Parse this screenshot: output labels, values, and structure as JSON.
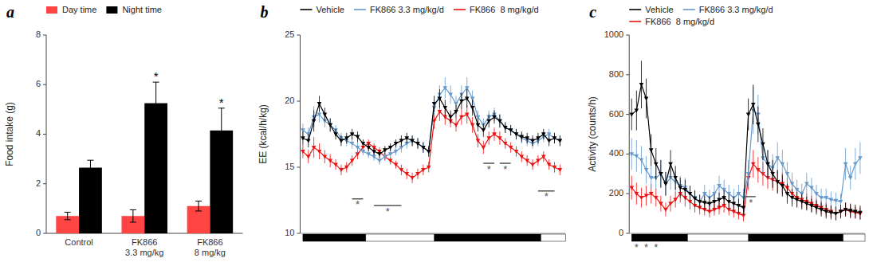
{
  "chart_data": [
    {
      "type": "bar",
      "title": "a",
      "categories": [
        "Control",
        "FK866\n3.3 mg/kg",
        "FK866\n8 mg/kg"
      ],
      "series": [
        {
          "name": "Day time",
          "color": "#FF4444",
          "values": [
            0.7,
            0.7,
            1.1
          ],
          "errors": [
            0.15,
            0.25,
            0.2
          ]
        },
        {
          "name": "Night time",
          "color": "#000000",
          "values": [
            2.65,
            5.25,
            4.15
          ],
          "errors": [
            0.3,
            0.85,
            0.9
          ],
          "significance": [
            null,
            "*",
            "*"
          ]
        }
      ],
      "ylabel": "Food intake (g)",
      "ylim": [
        0,
        8
      ],
      "yticks": [
        0,
        2,
        4,
        6,
        8
      ],
      "grid": false,
      "legend": "upper left"
    },
    {
      "type": "line",
      "title": "b",
      "x": [
        0,
        1,
        2,
        3,
        4,
        5,
        6,
        7,
        8,
        9,
        10,
        11,
        12,
        13,
        14,
        15,
        16,
        17,
        18,
        19,
        20,
        21,
        22,
        23,
        24,
        25,
        26,
        27,
        28,
        29,
        30,
        31,
        32,
        33,
        34,
        35,
        36,
        37,
        38,
        39,
        40,
        41,
        42,
        43,
        44,
        45,
        46,
        47
      ],
      "series": [
        {
          "name": "Vehicle",
          "color": "#000000",
          "marker": "triangle-down",
          "values": [
            17.2,
            17.0,
            18.5,
            19.8,
            19.0,
            18.2,
            17.5,
            17.0,
            17.2,
            17.5,
            17.3,
            16.8,
            16.5,
            16.2,
            16.0,
            16.3,
            16.5,
            16.8,
            17.0,
            17.2,
            17.0,
            16.8,
            16.5,
            16.2,
            19.8,
            20.2,
            19.5,
            18.8,
            19.2,
            20.0,
            20.2,
            19.5,
            18.2,
            17.8,
            18.5,
            18.8,
            18.5,
            18.0,
            17.8,
            17.5,
            17.3,
            17.2,
            17.0,
            17.2,
            17.5,
            17.0,
            17.2,
            17.0
          ],
          "errors": [
            0.5,
            0.5,
            0.8,
            0.6,
            0.5,
            0.5,
            0.4,
            0.4,
            0.4,
            0.4,
            0.4,
            0.3,
            0.3,
            0.3,
            0.3,
            0.3,
            0.3,
            0.3,
            0.4,
            0.4,
            0.4,
            0.4,
            0.4,
            0.4,
            0.6,
            0.7,
            0.6,
            0.5,
            0.5,
            0.6,
            0.7,
            0.6,
            0.5,
            0.5,
            0.5,
            0.5,
            0.5,
            0.4,
            0.4,
            0.4,
            0.4,
            0.4,
            0.4,
            0.4,
            0.4,
            0.4,
            0.4,
            0.4
          ]
        },
        {
          "name": "FK866 3.3 mg/kg/d",
          "color": "#6699CC",
          "marker": "triangle-down",
          "values": [
            17.8,
            17.5,
            18.8,
            19.0,
            18.5,
            18.2,
            17.8,
            17.2,
            17.0,
            16.8,
            16.5,
            16.2,
            16.0,
            15.8,
            15.5,
            15.8,
            16.0,
            16.2,
            16.5,
            16.8,
            17.0,
            16.8,
            16.5,
            16.2,
            19.5,
            20.5,
            21.0,
            20.5,
            19.8,
            20.5,
            21.0,
            20.2,
            18.8,
            18.2,
            18.8,
            19.0,
            18.5,
            18.0,
            17.8,
            17.5,
            17.2,
            17.0,
            16.8,
            17.0,
            17.3,
            17.5,
            17.2,
            17.0
          ],
          "errors": [
            0.5,
            0.5,
            0.8,
            0.6,
            0.5,
            0.5,
            0.4,
            0.4,
            0.4,
            0.4,
            0.4,
            0.3,
            0.3,
            0.3,
            0.3,
            0.3,
            0.3,
            0.3,
            0.4,
            0.4,
            0.4,
            0.4,
            0.4,
            0.4,
            0.6,
            0.7,
            0.8,
            0.7,
            0.6,
            0.7,
            0.8,
            0.6,
            0.5,
            0.5,
            0.5,
            0.5,
            0.5,
            0.4,
            0.4,
            0.4,
            0.4,
            0.4,
            0.4,
            0.4,
            0.4,
            0.4,
            0.4,
            0.4
          ]
        },
        {
          "name": "FK866  8 mg/kg/d",
          "color": "#EE1111",
          "marker": "triangle-down",
          "values": [
            16.2,
            15.8,
            16.5,
            16.2,
            15.8,
            15.5,
            15.2,
            14.8,
            15.0,
            15.5,
            16.0,
            16.5,
            16.8,
            16.5,
            16.2,
            15.8,
            15.5,
            15.2,
            14.8,
            14.5,
            14.2,
            14.5,
            14.8,
            15.0,
            18.5,
            19.2,
            18.8,
            18.5,
            18.2,
            18.8,
            19.0,
            18.2,
            17.0,
            16.5,
            17.2,
            17.5,
            17.2,
            16.8,
            16.5,
            16.2,
            15.8,
            15.5,
            15.2,
            15.5,
            15.8,
            15.2,
            15.0,
            14.8
          ],
          "errors": [
            0.5,
            0.5,
            0.8,
            0.6,
            0.5,
            0.5,
            0.4,
            0.4,
            0.4,
            0.4,
            0.4,
            0.3,
            0.3,
            0.3,
            0.3,
            0.3,
            0.3,
            0.3,
            0.4,
            0.4,
            0.4,
            0.4,
            0.4,
            0.4,
            0.6,
            0.7,
            0.6,
            0.5,
            0.5,
            0.6,
            0.7,
            0.6,
            0.5,
            0.5,
            0.5,
            0.5,
            0.5,
            0.4,
            0.4,
            0.4,
            0.4,
            0.4,
            0.4,
            0.4,
            0.4,
            0.4,
            0.4,
            0.4
          ]
        }
      ],
      "ylabel": "EE (kcal/h/kg)",
      "xlim": [
        -0.5,
        48
      ],
      "xticks": [],
      "ylim": [
        10,
        25
      ],
      "yticks": [
        10,
        15,
        20,
        25
      ],
      "tick_labels": "y",
      "grid": false,
      "legend": "upper left",
      "night_ranges": [
        [
          0,
          11.5
        ],
        [
          24,
          43.5
        ]
      ],
      "day_ranges": [
        [
          11.5,
          24
        ],
        [
          43.5,
          48
        ]
      ],
      "annotations": [
        {
          "text": "*",
          "x1": 9,
          "x2": 11,
          "y": 12.6
        },
        {
          "text": "*",
          "x1": 13,
          "x2": 18,
          "y": 12.1
        },
        {
          "text": "*",
          "x1": 33,
          "x2": 35,
          "y": 15.3
        },
        {
          "text": "*",
          "x1": 36,
          "x2": 38,
          "y": 15.3
        },
        {
          "text": "*",
          "x1": 43,
          "x2": 46,
          "y": 13.2
        }
      ]
    },
    {
      "type": "line",
      "title": "c",
      "x": [
        0,
        1,
        2,
        3,
        4,
        5,
        6,
        7,
        8,
        9,
        10,
        11,
        12,
        13,
        14,
        15,
        16,
        17,
        18,
        19,
        20,
        21,
        22,
        23,
        24,
        25,
        26,
        27,
        28,
        29,
        30,
        31,
        32,
        33,
        34,
        35,
        36,
        37,
        38,
        39,
        40,
        41,
        42,
        43,
        44,
        45,
        46,
        47
      ],
      "series": [
        {
          "name": "Vehicle",
          "color": "#000000",
          "marker": "triangle-down",
          "values": [
            600,
            620,
            750,
            680,
            420,
            350,
            300,
            250,
            350,
            280,
            230,
            220,
            200,
            175,
            160,
            155,
            150,
            160,
            170,
            180,
            160,
            150,
            140,
            130,
            600,
            650,
            550,
            450,
            350,
            300,
            260,
            240,
            200,
            180,
            170,
            160,
            150,
            140,
            130,
            120,
            110,
            105,
            100,
            110,
            120,
            115,
            110,
            105
          ],
          "errors": [
            80,
            100,
            120,
            100,
            80,
            80,
            70,
            60,
            70,
            60,
            50,
            50,
            40,
            40,
            35,
            35,
            35,
            35,
            35,
            35,
            35,
            35,
            35,
            35,
            80,
            100,
            90,
            80,
            70,
            70,
            60,
            55,
            50,
            45,
            40,
            40,
            35,
            35,
            35,
            35,
            35,
            35,
            35,
            35,
            35,
            35,
            35,
            35
          ]
        },
        {
          "name": "FK866 3.3 mg/kg/d",
          "color": "#6699CC",
          "marker": "triangle-down",
          "values": [
            400,
            390,
            370,
            320,
            280,
            280,
            300,
            250,
            280,
            260,
            240,
            230,
            200,
            180,
            160,
            200,
            180,
            200,
            240,
            220,
            200,
            180,
            200,
            180,
            300,
            620,
            600,
            380,
            350,
            330,
            380,
            350,
            300,
            250,
            220,
            200,
            250,
            230,
            200,
            180,
            180,
            170,
            165,
            160,
            350,
            280,
            350,
            380
          ],
          "errors": [
            80,
            80,
            70,
            70,
            60,
            60,
            70,
            60,
            60,
            55,
            50,
            50,
            40,
            40,
            35,
            45,
            40,
            45,
            50,
            50,
            45,
            45,
            45,
            45,
            70,
            120,
            100,
            80,
            70,
            70,
            80,
            70,
            60,
            55,
            50,
            50,
            55,
            50,
            45,
            45,
            45,
            40,
            40,
            40,
            80,
            60,
            80,
            80
          ]
        },
        {
          "name": "FK866  8 mg/kg/d",
          "color": "#EE1111",
          "marker": "triangle-down",
          "values": [
            230,
            200,
            180,
            190,
            200,
            180,
            150,
            120,
            150,
            170,
            200,
            180,
            160,
            140,
            130,
            120,
            110,
            120,
            130,
            140,
            120,
            110,
            100,
            90,
            280,
            350,
            320,
            300,
            280,
            270,
            260,
            250,
            230,
            200,
            180,
            170,
            160,
            150,
            140,
            130,
            120,
            110,
            100,
            110,
            120,
            110,
            105,
            100
          ],
          "errors": [
            60,
            55,
            50,
            50,
            50,
            45,
            40,
            35,
            40,
            40,
            45,
            45,
            40,
            35,
            35,
            30,
            30,
            30,
            35,
            35,
            30,
            30,
            30,
            30,
            60,
            70,
            65,
            60,
            55,
            55,
            55,
            55,
            50,
            50,
            45,
            40,
            40,
            40,
            35,
            35,
            35,
            30,
            30,
            30,
            35,
            35,
            30,
            30
          ]
        }
      ],
      "ylabel": "Activity (counts/h)",
      "xlim": [
        -0.5,
        48
      ],
      "xticks": [],
      "ylim": [
        0,
        1000
      ],
      "yticks": [
        0,
        200,
        400,
        600,
        800,
        1000
      ],
      "tick_labels": "y",
      "grid": false,
      "legend": "upper left",
      "night_ranges": [
        [
          0,
          11.5
        ],
        [
          24,
          43.5
        ]
      ],
      "day_ranges": [
        [
          11.5,
          24
        ],
        [
          43.5,
          48
        ]
      ],
      "annotations": [
        {
          "text": "*",
          "x1": 1,
          "x2": 1,
          "y": -20
        },
        {
          "text": "*",
          "x1": 3,
          "x2": 3,
          "y": -20
        },
        {
          "text": "*",
          "x1": 5,
          "x2": 5,
          "y": -20
        },
        {
          "text": "*",
          "x1": 23.5,
          "x2": 25.5,
          "y": 185
        }
      ]
    }
  ]
}
